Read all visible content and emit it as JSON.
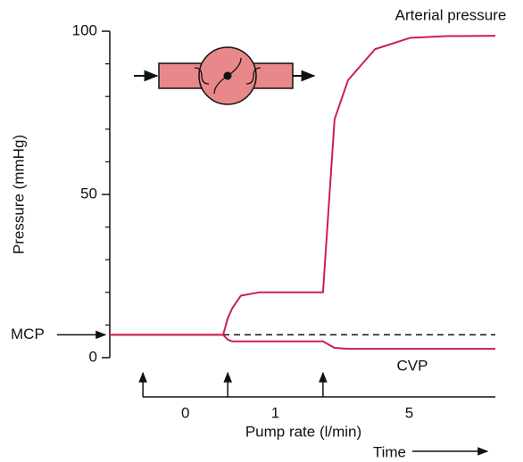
{
  "chart_data": {
    "type": "line",
    "y_label": "Pressure (mmHg)",
    "ylim": [
      0,
      100
    ],
    "yticks": [
      0,
      50,
      100
    ],
    "minor_yticks": [
      10,
      20,
      30,
      40,
      60,
      70,
      80,
      90
    ],
    "xlim": [
      0,
      100
    ],
    "x": [
      0,
      29.4,
      30.6,
      31.7,
      34.0,
      38.7,
      55.3,
      58.3,
      61.8,
      68.8,
      78.0,
      87.3,
      100
    ],
    "series": [
      {
        "name": "Arterial pressure",
        "color": "#cc1f4a",
        "values": [
          7,
          7,
          12,
          15,
          19,
          20,
          20,
          73,
          85,
          94.5,
          98,
          98.5,
          98.6
        ]
      },
      {
        "name": "CVP",
        "color": "#cc1f4a",
        "values": [
          7,
          7,
          5.5,
          5,
          5,
          5,
          5,
          3,
          2.7,
          2.7,
          2.7,
          2.7,
          2.7
        ]
      }
    ],
    "mcp": {
      "label": "MCP",
      "value": 7
    },
    "pump": {
      "label": "Pump rate (l/min)",
      "changes_at": [
        8.6,
        30.6,
        55.3
      ],
      "rates": [
        0,
        1,
        5
      ]
    },
    "time_label": "Time"
  }
}
